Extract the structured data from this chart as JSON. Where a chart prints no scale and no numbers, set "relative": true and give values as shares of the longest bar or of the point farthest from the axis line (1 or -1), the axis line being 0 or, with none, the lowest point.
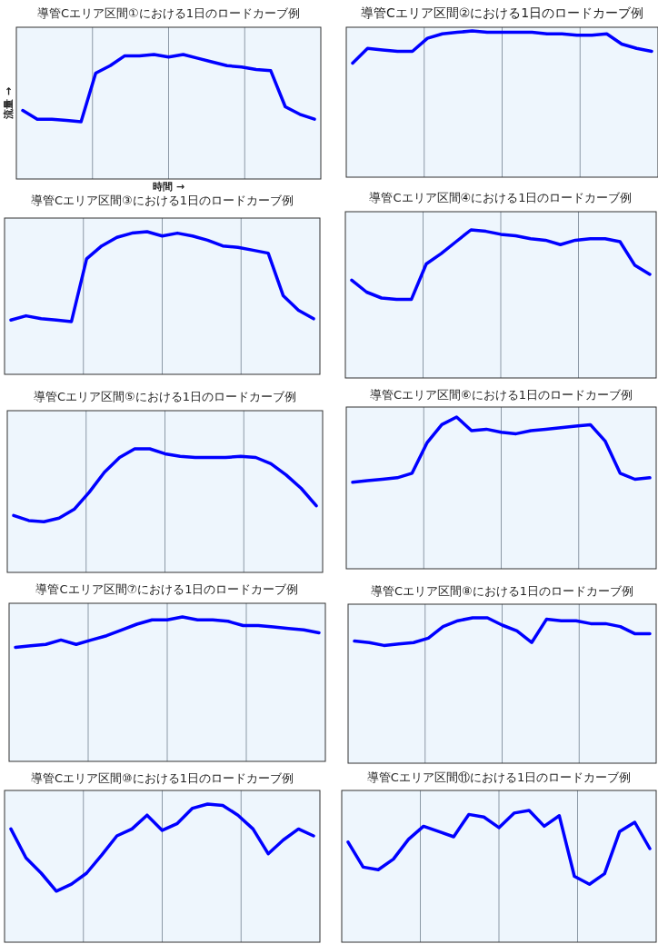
{
  "chart_data": [
    {
      "type": "line",
      "title": "導管Cエリア区間①における1日のロードカーブ例",
      "xlabel": "時間 →",
      "ylabel": "流量 →",
      "relative": true,
      "grid": "x",
      "color": "#0000ff",
      "categories": [
        null,
        null,
        null,
        null,
        null,
        null,
        null,
        null,
        null,
        null,
        null,
        null,
        null,
        null,
        null,
        null,
        null,
        null,
        null,
        null,
        null
      ],
      "values": [
        0.55,
        0.48,
        0.48,
        0.47,
        0.46,
        0.85,
        0.91,
        0.99,
        0.99,
        1.0,
        0.98,
        1.0,
        0.97,
        0.94,
        0.91,
        0.9,
        0.88,
        0.87,
        0.58,
        0.52,
        0.48
      ]
    },
    {
      "type": "line",
      "title": "導管Cエリア区間②における1日のロードカーブ例",
      "relative": true,
      "grid": "x",
      "color": "#0000ff",
      "categories": [
        null,
        null,
        null,
        null,
        null,
        null,
        null,
        null,
        null,
        null,
        null,
        null,
        null,
        null,
        null,
        null,
        null,
        null,
        null,
        null,
        null
      ],
      "values": [
        0.78,
        0.88,
        0.87,
        0.86,
        0.86,
        0.95,
        0.98,
        0.99,
        1.0,
        0.99,
        0.99,
        0.99,
        0.99,
        0.98,
        0.98,
        0.97,
        0.97,
        0.98,
        0.91,
        0.88,
        0.86
      ]
    },
    {
      "type": "line",
      "title": "導管Cエリア区間③における1日のロードカーブ例",
      "relative": true,
      "grid": "x",
      "color": "#0000ff",
      "categories": [
        null,
        null,
        null,
        null,
        null,
        null,
        null,
        null,
        null,
        null,
        null,
        null,
        null,
        null,
        null,
        null,
        null,
        null,
        null,
        null,
        null
      ],
      "values": [
        0.38,
        0.41,
        0.39,
        0.38,
        0.37,
        0.81,
        0.9,
        0.96,
        0.99,
        1.0,
        0.97,
        0.99,
        0.97,
        0.94,
        0.9,
        0.89,
        0.87,
        0.85,
        0.55,
        0.45,
        0.39
      ]
    },
    {
      "type": "line",
      "title": "導管Cエリア区間④における1日のロードカーブ例",
      "relative": true,
      "grid": "x",
      "color": "#0000ff",
      "categories": [
        null,
        null,
        null,
        null,
        null,
        null,
        null,
        null,
        null,
        null,
        null,
        null,
        null,
        null,
        null,
        null,
        null,
        null,
        null,
        null,
        null
      ],
      "values": [
        0.66,
        0.58,
        0.54,
        0.53,
        0.53,
        0.77,
        0.84,
        0.92,
        1.0,
        0.99,
        0.97,
        0.96,
        0.94,
        0.93,
        0.9,
        0.93,
        0.94,
        0.94,
        0.92,
        0.76,
        0.7
      ]
    },
    {
      "type": "line",
      "title": "導管Cエリア区間⑤における1日のロードカーブ例",
      "relative": true,
      "grid": "x",
      "color": "#0000ff",
      "categories": [
        null,
        null,
        null,
        null,
        null,
        null,
        null,
        null,
        null,
        null,
        null,
        null,
        null,
        null,
        null,
        null,
        null,
        null,
        null,
        null,
        null
      ],
      "values": [
        0.46,
        0.42,
        0.41,
        0.44,
        0.51,
        0.65,
        0.81,
        0.93,
        1.0,
        1.0,
        0.96,
        0.94,
        0.93,
        0.93,
        0.93,
        0.94,
        0.93,
        0.88,
        0.79,
        0.68,
        0.54
      ]
    },
    {
      "type": "line",
      "title": "導管Cエリア区間⑥における1日のロードカーブ例",
      "relative": true,
      "grid": "x",
      "color": "#0000ff",
      "categories": [
        null,
        null,
        null,
        null,
        null,
        null,
        null,
        null,
        null,
        null,
        null,
        null,
        null,
        null,
        null,
        null,
        null,
        null,
        null,
        null,
        null
      ],
      "values": [
        0.57,
        0.58,
        0.59,
        0.6,
        0.63,
        0.83,
        0.95,
        1.0,
        0.91,
        0.92,
        0.9,
        0.89,
        0.91,
        0.92,
        0.93,
        0.94,
        0.95,
        0.84,
        0.63,
        0.59,
        0.6
      ]
    },
    {
      "type": "line",
      "title": "導管Cエリア区間⑦における1日のロードカーブ例",
      "relative": true,
      "grid": "x",
      "color": "#0000ff",
      "categories": [
        null,
        null,
        null,
        null,
        null,
        null,
        null,
        null,
        null,
        null,
        null,
        null,
        null,
        null,
        null,
        null,
        null,
        null,
        null,
        null,
        null
      ],
      "values": [
        0.79,
        0.8,
        0.81,
        0.84,
        0.81,
        0.84,
        0.87,
        0.91,
        0.95,
        0.98,
        0.98,
        1.0,
        0.98,
        0.98,
        0.97,
        0.94,
        0.94,
        0.93,
        0.92,
        0.91,
        0.89
      ]
    },
    {
      "type": "line",
      "title": "導管Cエリア区間⑧における1日のロードカーブ例",
      "relative": true,
      "grid": "x",
      "color": "#0000ff",
      "categories": [
        null,
        null,
        null,
        null,
        null,
        null,
        null,
        null,
        null,
        null,
        null,
        null,
        null,
        null,
        null,
        null,
        null,
        null,
        null,
        null,
        null
      ],
      "values": [
        0.84,
        0.83,
        0.81,
        0.82,
        0.83,
        0.86,
        0.94,
        0.98,
        1.0,
        1.0,
        0.95,
        0.91,
        0.83,
        0.99,
        0.98,
        0.98,
        0.96,
        0.96,
        0.94,
        0.89,
        0.89
      ]
    },
    {
      "type": "line",
      "title": "導管Cエリア区間⑩における1日のロードカーブ例",
      "relative": true,
      "grid": "x",
      "color": "#0000ff",
      "categories": [
        null,
        null,
        null,
        null,
        null,
        null,
        null,
        null,
        null,
        null,
        null,
        null,
        null,
        null,
        null,
        null,
        null,
        null,
        null,
        null,
        null
      ],
      "values": [
        0.82,
        0.61,
        0.5,
        0.37,
        0.42,
        0.5,
        0.63,
        0.77,
        0.82,
        0.92,
        0.81,
        0.86,
        0.97,
        1.0,
        0.99,
        0.92,
        0.82,
        0.64,
        0.74,
        0.82,
        0.77
      ]
    },
    {
      "type": "line",
      "title": "導管Cエリア区間⑪における1日のロードカーブ例",
      "relative": true,
      "grid": "x",
      "color": "#0000ff",
      "categories": [
        null,
        null,
        null,
        null,
        null,
        null,
        null,
        null,
        null,
        null,
        null,
        null,
        null,
        null,
        null,
        null,
        null,
        null,
        null,
        null,
        null
      ],
      "values": [
        0.76,
        0.57,
        0.55,
        0.63,
        0.78,
        0.88,
        0.84,
        0.8,
        0.97,
        0.95,
        0.87,
        0.98,
        1.0,
        0.88,
        0.96,
        0.5,
        0.44,
        0.52,
        0.84,
        0.91,
        0.71
      ]
    }
  ]
}
